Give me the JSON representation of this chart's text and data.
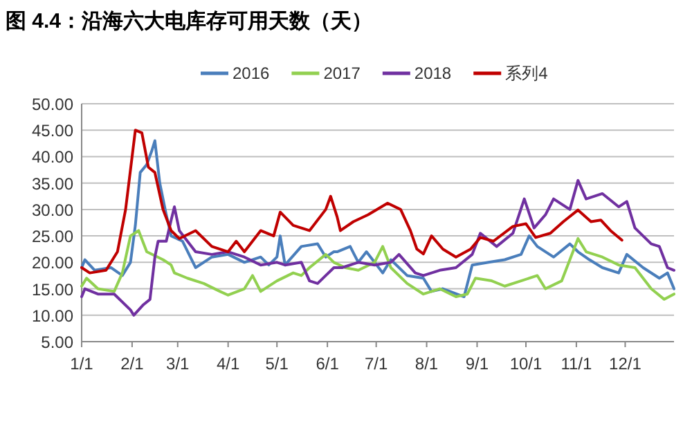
{
  "chart_data": {
    "type": "line",
    "title": "图 4.4：沿海六大电库存可用天数（天）",
    "xlim": [
      "--01-01",
      "--12-31"
    ],
    "xticks": [
      {
        "value": "--01-01",
        "label": "1/1"
      },
      {
        "value": "--02-01",
        "label": "2/1"
      },
      {
        "value": "--03-01",
        "label": "3/1"
      },
      {
        "value": "--04-01",
        "label": "4/1"
      },
      {
        "value": "--05-01",
        "label": "5/1"
      },
      {
        "value": "--06-01",
        "label": "6/1"
      },
      {
        "value": "--07-01",
        "label": "7/1"
      },
      {
        "value": "--08-01",
        "label": "8/1"
      },
      {
        "value": "--09-01",
        "label": "9/1"
      },
      {
        "value": "--10-01",
        "label": "10/1"
      },
      {
        "value": "--11-01",
        "label": "11/1"
      },
      {
        "value": "--12-01",
        "label": "12/1"
      }
    ],
    "ylim": [
      5,
      50
    ],
    "yticks": [
      {
        "value": 5,
        "label": "5.00"
      },
      {
        "value": 10,
        "label": "10.00"
      },
      {
        "value": 15,
        "label": "15.00"
      },
      {
        "value": 20,
        "label": "20.00"
      },
      {
        "value": 25,
        "label": "25.00"
      },
      {
        "value": 30,
        "label": "30.00"
      },
      {
        "value": 35,
        "label": "35.00"
      },
      {
        "value": 40,
        "label": "40.00"
      },
      {
        "value": 45,
        "label": "45.00"
      },
      {
        "value": 50,
        "label": "50.00"
      }
    ],
    "grid": "y",
    "legend": "top",
    "marker": "none",
    "line_style": "solid",
    "series": [
      {
        "name": "2016",
        "color": "#4a7ebb",
        "x": [
          "--01-01",
          "--01-03",
          "--01-09",
          "--01-19",
          "--01-26",
          "--01-31",
          "--02-03",
          "--02-06",
          "--02-10",
          "--02-13",
          "--02-15",
          "--02-18",
          "--02-22",
          "--02-25",
          "--03-04",
          "--03-12",
          "--03-22",
          "--04-01",
          "--04-11",
          "--04-21",
          "--04-26",
          "--05-01",
          "--05-03",
          "--05-06",
          "--05-16",
          "--05-26",
          "--05-31",
          "--06-05",
          "--06-07",
          "--06-15",
          "--06-20",
          "--06-25",
          "--06-30",
          "--07-05",
          "--07-10",
          "--07-20",
          "--07-30",
          "--08-04",
          "--08-11",
          "--08-24",
          "--08-29",
          "--09-08",
          "--09-18",
          "--09-28",
          "--10-03",
          "--10-08",
          "--10-18",
          "--10-28",
          "--11-02",
          "--11-09",
          "--11-17",
          "--11-27",
          "--12-02",
          "--12-12",
          "--12-22",
          "--12-27",
          "--12-31"
        ],
        "values": [
          19,
          20.5,
          18.5,
          19,
          17.5,
          20,
          27,
          37,
          38.5,
          41,
          43,
          35,
          29,
          25,
          24,
          19,
          21,
          21.5,
          20,
          21,
          19.5,
          21,
          25,
          19.5,
          23,
          23.5,
          21,
          22,
          22,
          23,
          20,
          22,
          20,
          18,
          20.5,
          17.5,
          17,
          14.5,
          15,
          13.5,
          19.5,
          20,
          20.5,
          21.5,
          25,
          23,
          21,
          23.5,
          22,
          20.5,
          19,
          18,
          21.5,
          19,
          17,
          18,
          15
        ]
      },
      {
        "name": "2017",
        "color": "#92d050",
        "x": [
          "--01-01",
          "--01-04",
          "--01-11",
          "--01-21",
          "--01-26",
          "--01-31",
          "--02-05",
          "--02-10",
          "--02-20",
          "--02-25",
          "--02-27",
          "--03-07",
          "--03-17",
          "--03-27",
          "--04-01",
          "--04-11",
          "--04-16",
          "--04-21",
          "--05-01",
          "--05-11",
          "--05-16",
          "--05-21",
          "--05-31",
          "--06-05",
          "--06-12",
          "--06-20",
          "--06-30",
          "--07-05",
          "--07-10",
          "--07-20",
          "--07-30",
          "--08-09",
          "--08-19",
          "--08-26",
          "--08-31",
          "--09-10",
          "--09-18",
          "--09-28",
          "--10-08",
          "--10-13",
          "--10-23",
          "--11-02",
          "--11-07",
          "--11-17",
          "--11-27",
          "--12-07",
          "--12-17",
          "--12-25",
          "--12-31"
        ],
        "values": [
          15.5,
          17,
          15,
          14.5,
          18,
          25,
          26,
          22,
          20.5,
          19.5,
          18,
          17,
          16,
          14.5,
          13.8,
          15,
          17.5,
          14.5,
          16.5,
          18,
          17.5,
          19,
          21.5,
          20,
          19,
          18.5,
          20,
          23,
          19,
          16,
          14,
          15,
          13.5,
          14,
          17,
          16.5,
          15.5,
          16.5,
          17.5,
          15,
          16.5,
          24.5,
          22,
          21,
          19.5,
          19,
          15,
          13,
          14
        ]
      },
      {
        "name": "2018",
        "color": "#7030a0",
        "x": [
          "--01-01",
          "--01-03",
          "--01-11",
          "--01-21",
          "--01-31",
          "--02-02",
          "--02-08",
          "--02-12",
          "--02-15",
          "--02-17",
          "--02-22",
          "--02-25",
          "--02-27",
          "--03-02",
          "--03-07",
          "--03-12",
          "--03-22",
          "--04-01",
          "--04-11",
          "--04-21",
          "--05-01",
          "--05-06",
          "--05-16",
          "--05-21",
          "--05-26",
          "--05-31",
          "--06-05",
          "--06-10",
          "--06-20",
          "--06-30",
          "--07-10",
          "--07-15",
          "--07-25",
          "--07-30",
          "--08-09",
          "--08-19",
          "--08-29",
          "--09-03",
          "--09-13",
          "--09-23",
          "--09-30",
          "--10-06",
          "--10-13",
          "--10-18",
          "--10-28",
          "--11-02",
          "--11-07",
          "--11-17",
          "--11-27",
          "--12-02",
          "--12-07",
          "--12-17",
          "--12-22",
          "--12-27",
          "--12-31"
        ],
        "values": [
          13.5,
          15,
          14,
          14,
          11,
          10,
          12,
          13,
          21,
          24,
          24,
          28,
          30.5,
          26,
          24,
          22,
          21.5,
          22,
          21,
          19.5,
          20,
          19.5,
          20,
          16.5,
          16,
          17.5,
          19,
          19,
          20,
          19.5,
          20,
          21.5,
          18,
          17.5,
          18.5,
          19,
          21.5,
          25.5,
          23,
          25.5,
          32,
          26.5,
          29,
          32,
          30,
          35.5,
          32,
          33,
          30.5,
          31.5,
          26.5,
          23.5,
          23,
          19,
          18.5
        ]
      },
      {
        "name": "系列4",
        "color": "#c00000",
        "x": [
          "--01-01",
          "--01-06",
          "--01-16",
          "--01-23",
          "--01-28",
          "--02-01",
          "--02-03",
          "--02-07",
          "--02-11",
          "--02-15",
          "--02-20",
          "--02-25",
          "--03-02",
          "--03-12",
          "--03-22",
          "--04-01",
          "--04-06",
          "--04-11",
          "--04-21",
          "--04-29",
          "--05-03",
          "--05-11",
          "--05-21",
          "--05-31",
          "--06-03",
          "--06-07",
          "--06-09",
          "--06-17",
          "--06-26",
          "--07-08",
          "--07-16",
          "--07-22",
          "--07-26",
          "--07-30",
          "--08-04",
          "--08-11",
          "--08-19",
          "--08-28",
          "--09-03",
          "--09-11",
          "--09-23",
          "--10-01",
          "--10-07",
          "--10-16",
          "--10-24",
          "--11-02",
          "--11-10",
          "--11-16",
          "--11-22",
          "--11-29"
        ],
        "values": [
          19,
          18,
          18.5,
          22,
          30,
          40,
          45,
          44.5,
          38,
          37,
          30,
          26,
          24.5,
          26,
          23,
          22,
          24,
          22,
          26,
          25,
          29.5,
          27,
          26,
          30,
          32.5,
          28.6,
          26,
          27.7,
          29,
          31.2,
          30,
          26,
          22.5,
          21.6,
          25,
          22.5,
          21,
          22.5,
          24.7,
          24,
          26.8,
          27.3,
          24.7,
          25.5,
          27.7,
          29.9,
          27.7,
          28,
          26,
          24.2
        ]
      }
    ]
  }
}
